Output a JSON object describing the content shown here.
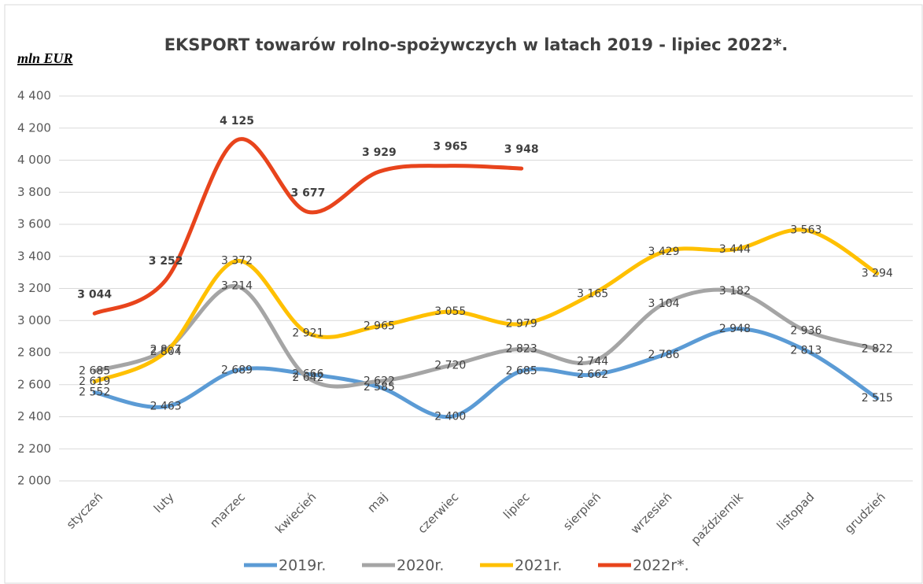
{
  "chart_data": {
    "type": "line",
    "title": "EKSPORT towarów rolno-spożywczych w latach 2019 - lipiec 2022*.",
    "y_label": "mln EUR",
    "categories": [
      "styczeń",
      "luty",
      "marzec",
      "kwiecień",
      "maj",
      "czerwiec",
      "lipiec",
      "sierpień",
      "wrzesień",
      "październik",
      "listopad",
      "grudzień"
    ],
    "series": [
      {
        "name": "2019r.",
        "color": "#5b9bd5",
        "values": [
          2552,
          2463,
          2689,
          2666,
          2585,
          2400,
          2685,
          2662,
          2786,
          2948,
          2813,
          2515
        ],
        "value_labels": [
          "2 552",
          "2 463",
          "2 689",
          "2 666",
          "2 585",
          "2 400",
          "2 685",
          "2 662",
          "2 786",
          "2 948",
          "2 813",
          "2 515"
        ]
      },
      {
        "name": "2020r.",
        "color": "#a5a5a5",
        "values": [
          2685,
          2817,
          3214,
          2642,
          2622,
          2720,
          2823,
          2744,
          3104,
          3182,
          2936,
          2822
        ],
        "value_labels": [
          "2 685",
          "2 817",
          "3 214",
          "2 642",
          "2 622",
          "2 720",
          "2 823",
          "2 744",
          "3 104",
          "3 182",
          "2 936",
          "2 822"
        ]
      },
      {
        "name": "2021r.",
        "color": "#ffc000",
        "values": [
          2619,
          2804,
          3372,
          2921,
          2965,
          3055,
          2979,
          3165,
          3429,
          3444,
          3563,
          3294
        ],
        "value_labels": [
          "2 619",
          "2 804",
          "3 372",
          "2 921",
          "2 965",
          "3 055",
          "2 979",
          "3 165",
          "3 429",
          "3 444",
          "3 563",
          "3 294"
        ]
      },
      {
        "name": "2022r*.",
        "color": "#e8441c",
        "values": [
          3044,
          3252,
          4125,
          3677,
          3929,
          3965,
          3948,
          null,
          null,
          null,
          null,
          null
        ],
        "value_labels": [
          "3 044",
          "3 252",
          "4 125",
          "3 677",
          "3 929",
          "3 965",
          "3 948",
          null,
          null,
          null,
          null,
          null
        ]
      }
    ],
    "ylim": [
      2000,
      4400
    ],
    "yticks": [
      {
        "value": 2000,
        "label": "2 000"
      },
      {
        "value": 2200,
        "label": "2 200"
      },
      {
        "value": 2400,
        "label": "2 400"
      },
      {
        "value": 2600,
        "label": "2 600"
      },
      {
        "value": 2800,
        "label": "2 800"
      },
      {
        "value": 3000,
        "label": "3 000"
      },
      {
        "value": 3200,
        "label": "3 200"
      },
      {
        "value": 3400,
        "label": "3 400"
      },
      {
        "value": 3600,
        "label": "3 600"
      },
      {
        "value": 3800,
        "label": "3 800"
      },
      {
        "value": 4000,
        "label": "4 000"
      },
      {
        "value": 4200,
        "label": "4 200"
      },
      {
        "value": 4400,
        "label": "4 400"
      }
    ],
    "grid": true,
    "legend": "bottom"
  }
}
